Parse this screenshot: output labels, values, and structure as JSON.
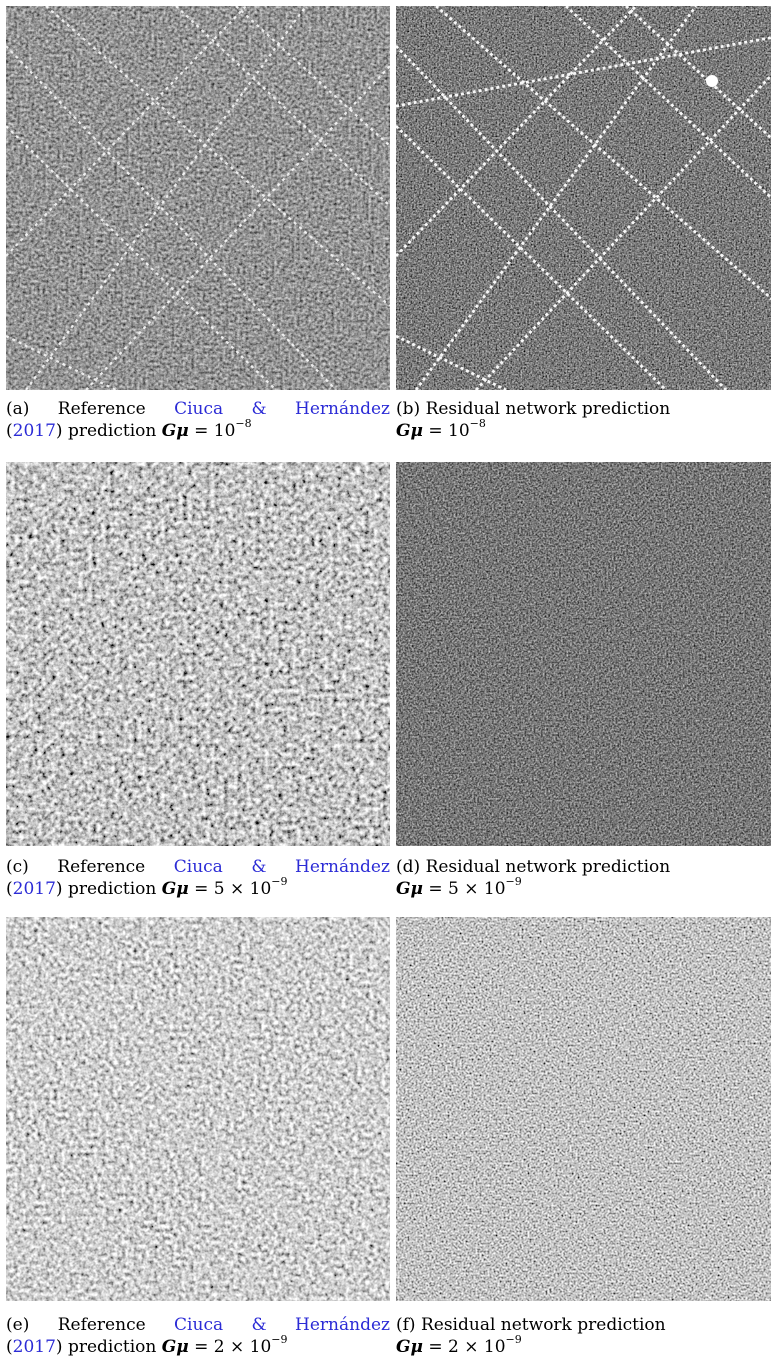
{
  "figure": {
    "panels": [
      {
        "id": "a",
        "label": "(a)",
        "text_reference": "Reference",
        "cite_authors": [
          "Ciuca",
          "&",
          "Hernández"
        ],
        "cite_year": "2017",
        "text_prediction": "prediction",
        "gmu_label": "Gμ",
        "gmu_value": "= 10",
        "gmu_exponent": "−8",
        "texture": "strings-strong"
      },
      {
        "id": "b",
        "label": "(b)",
        "text_title": "Residual network prediction",
        "gmu_label": "Gμ",
        "gmu_value": "= 10",
        "gmu_exponent": "−8",
        "texture": "strings-strong-bright"
      },
      {
        "id": "c",
        "label": "(c)",
        "text_reference": "Reference",
        "cite_authors": [
          "Ciuca",
          "&",
          "Hernández"
        ],
        "cite_year": "2017",
        "text_prediction": "prediction",
        "gmu_label": "Gμ",
        "gmu_value": "= 5 × 10",
        "gmu_exponent": "−9",
        "texture": "noisy-mid"
      },
      {
        "id": "d",
        "label": "(d)",
        "text_title": "Residual network prediction",
        "gmu_label": "Gμ",
        "gmu_value": "= 5 × 10",
        "gmu_exponent": "−9",
        "texture": "noisy-dark"
      },
      {
        "id": "e",
        "label": "(e)",
        "text_reference": "Reference",
        "cite_authors": [
          "Ciuca",
          "&",
          "Hernández"
        ],
        "cite_year": "2017",
        "text_prediction": "prediction",
        "gmu_label": "Gμ",
        "gmu_value": "= 2 × 10",
        "gmu_exponent": "−9",
        "texture": "noisy-light"
      },
      {
        "id": "f",
        "label": "(f)",
        "text_title": "Residual network prediction",
        "gmu_label": "Gμ",
        "gmu_value": "= 2 × 10",
        "gmu_exponent": "−9",
        "texture": "noisy-fine"
      }
    ],
    "colors": {
      "citation": "#2b2bd6",
      "background": "#ffffff",
      "map_dark": "#1e1e1e",
      "map_light": "#f2f2f2"
    }
  }
}
